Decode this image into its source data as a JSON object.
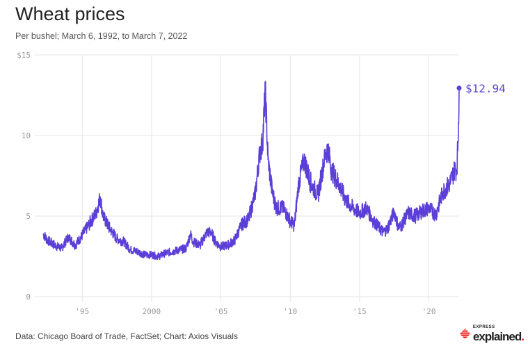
{
  "chart_data": {
    "type": "line",
    "title": "Wheat prices",
    "subtitle": "Per bushel; March 6, 1992, to March 7, 2022",
    "source": "Data: Chicago Board of Trade, FactSet; Chart: Axios Visuals",
    "xlim": [
      1992.18,
      2022.18
    ],
    "ylim": [
      0,
      15
    ],
    "y_ticks": [
      {
        "v": 0,
        "label": "0"
      },
      {
        "v": 5,
        "label": "5"
      },
      {
        "v": 10,
        "label": "10"
      },
      {
        "v": 15,
        "label": "$15"
      }
    ],
    "x_ticks": [
      {
        "v": 1995,
        "label": "'95"
      },
      {
        "v": 2000,
        "label": "2000"
      },
      {
        "v": 2005,
        "label": "'05"
      },
      {
        "v": 2010,
        "label": "'10"
      },
      {
        "v": 2015,
        "label": "'15"
      },
      {
        "v": 2020,
        "label": "'20"
      }
    ],
    "grid": true,
    "line_color": "#5b3fd6",
    "end_label": "$12.94",
    "series": [
      {
        "name": "Wheat price",
        "points": [
          [
            1992.18,
            3.9
          ],
          [
            1992.5,
            3.5
          ],
          [
            1993,
            3.2
          ],
          [
            1993.5,
            3.0
          ],
          [
            1994,
            3.7
          ],
          [
            1994.5,
            3.2
          ],
          [
            1995,
            3.8
          ],
          [
            1995.5,
            4.5
          ],
          [
            1996,
            5.2
          ],
          [
            1996.3,
            6.2
          ],
          [
            1996.5,
            5.0
          ],
          [
            1997,
            4.2
          ],
          [
            1997.5,
            3.6
          ],
          [
            1998,
            3.4
          ],
          [
            1998.5,
            2.9
          ],
          [
            1999,
            2.8
          ],
          [
            1999.5,
            2.6
          ],
          [
            2000,
            2.6
          ],
          [
            2000.5,
            2.5
          ],
          [
            2001,
            2.7
          ],
          [
            2001.5,
            2.8
          ],
          [
            2002,
            2.9
          ],
          [
            2002.5,
            3.0
          ],
          [
            2002.8,
            3.9
          ],
          [
            2003,
            3.4
          ],
          [
            2003.5,
            3.2
          ],
          [
            2004,
            4.0
          ],
          [
            2004.3,
            4.0
          ],
          [
            2004.6,
            3.4
          ],
          [
            2005,
            3.1
          ],
          [
            2005.5,
            3.2
          ],
          [
            2006,
            3.5
          ],
          [
            2006.5,
            4.5
          ],
          [
            2007,
            4.8
          ],
          [
            2007.5,
            6.5
          ],
          [
            2007.8,
            9.0
          ],
          [
            2008,
            9.5
          ],
          [
            2008.2,
            12.8
          ],
          [
            2008.4,
            8.5
          ],
          [
            2008.7,
            6.5
          ],
          [
            2009,
            5.5
          ],
          [
            2009.5,
            5.5
          ],
          [
            2010,
            4.7
          ],
          [
            2010.3,
            4.4
          ],
          [
            2010.6,
            7.0
          ],
          [
            2011,
            8.5
          ],
          [
            2011.5,
            7.0
          ],
          [
            2012,
            6.3
          ],
          [
            2012.5,
            8.7
          ],
          [
            2012.7,
            9.2
          ],
          [
            2013,
            7.8
          ],
          [
            2013.5,
            7.0
          ],
          [
            2014,
            6.0
          ],
          [
            2014.5,
            5.5
          ],
          [
            2015,
            5.2
          ],
          [
            2015.5,
            5.5
          ],
          [
            2016,
            4.7
          ],
          [
            2016.7,
            4.0
          ],
          [
            2017,
            4.2
          ],
          [
            2017.5,
            5.3
          ],
          [
            2017.8,
            4.3
          ],
          [
            2018,
            4.4
          ],
          [
            2018.5,
            5.2
          ],
          [
            2019,
            5.0
          ],
          [
            2019.5,
            5.3
          ],
          [
            2020,
            5.5
          ],
          [
            2020.5,
            5.1
          ],
          [
            2021,
            6.5
          ],
          [
            2021.5,
            7.0
          ],
          [
            2021.9,
            8.0
          ],
          [
            2022.0,
            7.8
          ],
          [
            2022.1,
            9.5
          ],
          [
            2022.18,
            12.94
          ]
        ]
      }
    ]
  },
  "logo": {
    "small": "EXPRESS",
    "big": "explained",
    "dot": "."
  }
}
